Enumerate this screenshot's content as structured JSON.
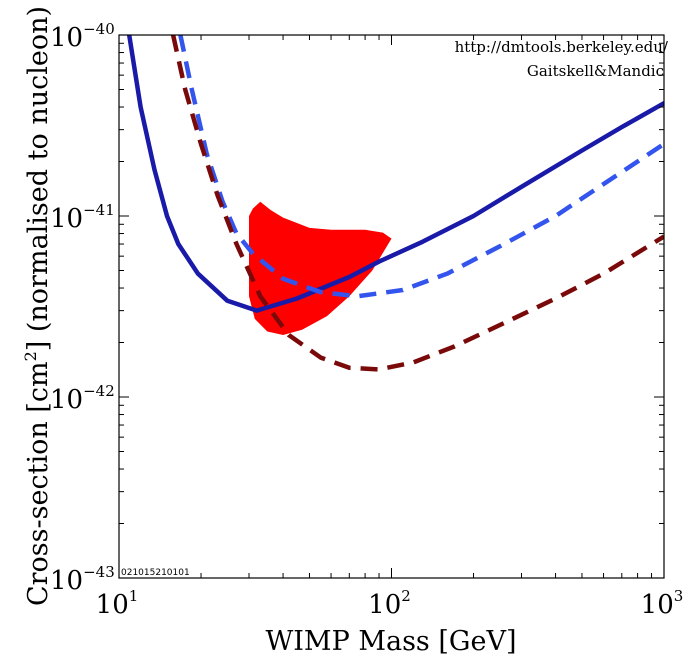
{
  "chart_data": {
    "type": "line",
    "title": "",
    "xlabel": "WIMP Mass [GeV]",
    "ylabel_parts": {
      "before": "Cross-section [cm",
      "sup": "2",
      "after": "] (normalised to nucleon)"
    },
    "xscale": "log",
    "yscale": "log",
    "xlim": [
      10,
      1000
    ],
    "ylim": [
      1e-43,
      1e-40
    ],
    "x_ticks": [
      {
        "value": 10,
        "base": "10",
        "exp": "1"
      },
      {
        "value": 100,
        "base": "10",
        "exp": "2"
      },
      {
        "value": 1000,
        "base": "10",
        "exp": "3"
      }
    ],
    "y_ticks": [
      {
        "value": 1e-43,
        "base": "10",
        "exp": "−43"
      },
      {
        "value": 1e-42,
        "base": "10",
        "exp": "−42"
      },
      {
        "value": 1e-41,
        "base": "10",
        "exp": "−41"
      },
      {
        "value": 1e-40,
        "base": "10",
        "exp": "−40"
      }
    ],
    "annotations": {
      "url": "http://dmtools.berkeley.edu/",
      "authors": "Gaitskell&Mandic",
      "stamp": "021015210101"
    },
    "series": [
      {
        "name": "solid-blue-limit",
        "color": "#1a1aa8",
        "dash": "solid",
        "points": [
          [
            10.9,
            1e-40
          ],
          [
            12.0,
            4e-41
          ],
          [
            13.5,
            1.8e-41
          ],
          [
            15.0,
            1e-41
          ],
          [
            16.5,
            7e-42
          ],
          [
            19.5,
            4.8e-42
          ],
          [
            25.0,
            3.4e-42
          ],
          [
            32.0,
            3e-42
          ],
          [
            45.0,
            3.5e-42
          ],
          [
            70.0,
            4.6e-42
          ],
          [
            90.0,
            5.6e-42
          ],
          [
            130.0,
            7.2e-42
          ],
          [
            200.0,
            1e-41
          ],
          [
            300.0,
            1.45e-41
          ],
          [
            500.0,
            2.3e-41
          ],
          [
            700.0,
            3.1e-41
          ],
          [
            1000.0,
            4.2e-41
          ]
        ]
      },
      {
        "name": "dashed-blue-limit",
        "color": "#3355ee",
        "dash": "dashed",
        "points": [
          [
            16.8,
            1e-40
          ],
          [
            18.5,
            5e-41
          ],
          [
            21.0,
            2.2e-41
          ],
          [
            24.0,
            1.2e-41
          ],
          [
            27.0,
            8e-42
          ],
          [
            31.0,
            6.2e-42
          ],
          [
            40.0,
            4.5e-42
          ],
          [
            55.0,
            3.8e-42
          ],
          [
            75.0,
            3.6e-42
          ],
          [
            110.0,
            3.9e-42
          ],
          [
            160.0,
            4.8e-42
          ],
          [
            250.0,
            6.8e-42
          ],
          [
            400.0,
            1e-41
          ],
          [
            600.0,
            1.5e-41
          ],
          [
            1000.0,
            2.5e-41
          ]
        ]
      },
      {
        "name": "dashed-darkred-limit",
        "color": "#7a0a0a",
        "dash": "dashed",
        "points": [
          [
            15.8,
            1e-40
          ],
          [
            17.5,
            5e-41
          ],
          [
            20.0,
            2.5e-41
          ],
          [
            23.0,
            1.3e-41
          ],
          [
            27.0,
            7e-42
          ],
          [
            33.0,
            3.6e-42
          ],
          [
            42.0,
            2.2e-42
          ],
          [
            55.0,
            1.65e-42
          ],
          [
            70.0,
            1.45e-42
          ],
          [
            90.0,
            1.42e-42
          ],
          [
            120.0,
            1.55e-42
          ],
          [
            170.0,
            1.9e-42
          ],
          [
            250.0,
            2.5e-42
          ],
          [
            400.0,
            3.5e-42
          ],
          [
            600.0,
            4.8e-42
          ],
          [
            1000.0,
            7.7e-42
          ]
        ]
      }
    ],
    "regions": [
      {
        "name": "allowed-region",
        "color": "#ff0000",
        "points": [
          [
            30.0,
            1e-41
          ],
          [
            31.0,
            1.1e-41
          ],
          [
            33.0,
            1.2e-41
          ],
          [
            36.0,
            1.08e-41
          ],
          [
            40.0,
            9.8e-42
          ],
          [
            50.0,
            8.6e-42
          ],
          [
            60.0,
            8.4e-42
          ],
          [
            80.0,
            8.4e-42
          ],
          [
            93.0,
            8.1e-42
          ],
          [
            100.0,
            7.5e-42
          ],
          [
            85.0,
            5e-42
          ],
          [
            70.0,
            3.6e-42
          ],
          [
            58.0,
            2.8e-42
          ],
          [
            47.0,
            2.35e-42
          ],
          [
            40.0,
            2.2e-42
          ],
          [
            35.0,
            2.3e-42
          ],
          [
            31.5,
            2.7e-42
          ],
          [
            30.0,
            3.6e-42
          ]
        ]
      }
    ]
  }
}
